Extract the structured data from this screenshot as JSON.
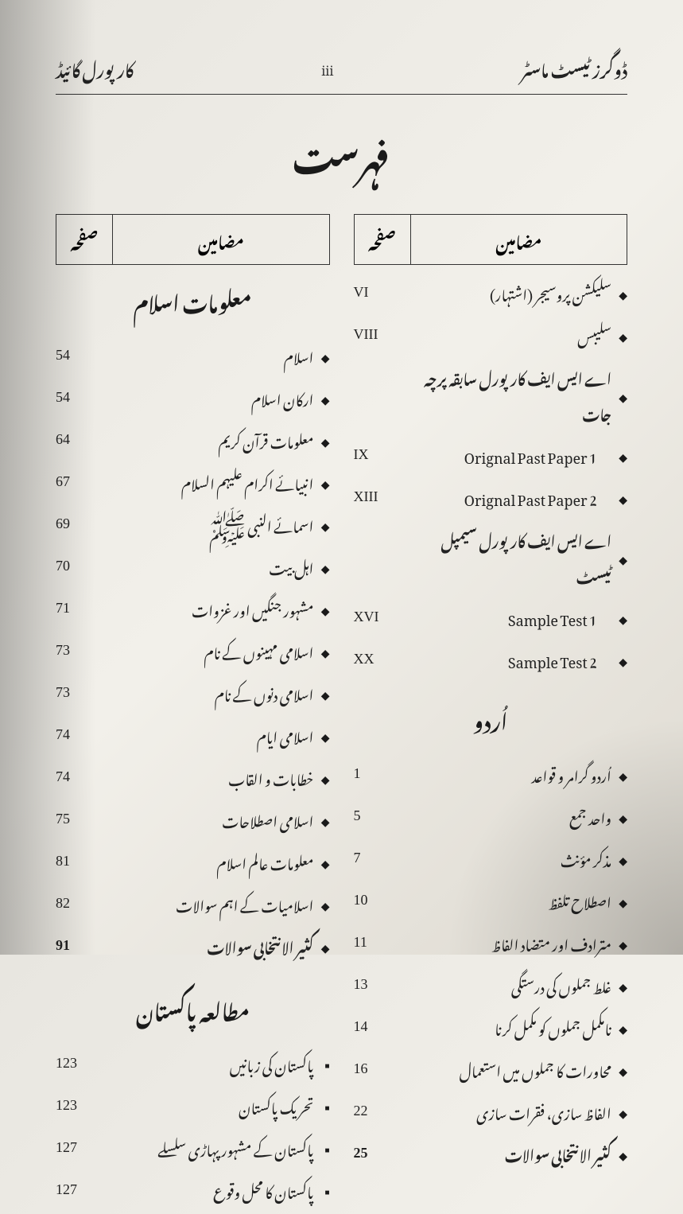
{
  "header": {
    "left": "کارپورل گائیڈ",
    "center": "iii",
    "right": "ڈوگرز ٹیسٹ ماسٹر"
  },
  "main_title": "فہرست",
  "column_headers": {
    "topic": "مضامین",
    "page": "صفحہ"
  },
  "right_column": {
    "items_top": [
      {
        "topic": "سلیکشن پروسیجر (اشتہار)",
        "page": "VI",
        "bullet": "diamond"
      },
      {
        "topic": "سلیبس",
        "page": "VIII",
        "bullet": "diamond"
      },
      {
        "topic": "اے ایس ایف کارپورل سابقہ پرچہ جات",
        "page": "",
        "bullet": "diamond",
        "bold": true
      },
      {
        "topic": "Orignal Past Paper 1",
        "page": "IX",
        "bullet": "diamond",
        "indent": true
      },
      {
        "topic": "Orignal Past Paper 2",
        "page": "XIII",
        "bullet": "diamond",
        "indent": true
      },
      {
        "topic": "اے ایس ایف کارپورل سیمپل ٹیسٹ",
        "page": "",
        "bullet": "diamond",
        "bold": true
      },
      {
        "topic": "Sample Test 1",
        "page": "XVI",
        "bullet": "diamond",
        "indent": true
      },
      {
        "topic": "Sample Test 2",
        "page": "XX",
        "bullet": "diamond",
        "indent": true
      }
    ],
    "section_urdu": "اُردو",
    "items_urdu": [
      {
        "topic": "اُردو گرامر و قواعد",
        "page": "1",
        "bullet": "diamond"
      },
      {
        "topic": "واحد جمع",
        "page": "5",
        "bullet": "diamond"
      },
      {
        "topic": "مذکر مؤنث",
        "page": "7",
        "bullet": "diamond"
      },
      {
        "topic": "اصطلاح تلفظ",
        "page": "10",
        "bullet": "diamond"
      },
      {
        "topic": "مترادف اور متضاد الفاظ",
        "page": "11",
        "bullet": "diamond"
      },
      {
        "topic": "غلط جملوں کی درستگی",
        "page": "13",
        "bullet": "diamond"
      },
      {
        "topic": "نامکمل جملوں کو مکمل کرنا",
        "page": "14",
        "bullet": "diamond"
      },
      {
        "topic": "محاورات کا جملوں میں استعمال",
        "page": "16",
        "bullet": "diamond"
      },
      {
        "topic": "الفاظ سازی، فقرات سازی",
        "page": "22",
        "bullet": "diamond"
      },
      {
        "topic": "کثیر الانتخابی سوالات",
        "page": "25",
        "bullet": "diamond",
        "bold": true
      }
    ]
  },
  "left_column": {
    "section_islam": "معلومات اسلام",
    "items_islam": [
      {
        "topic": "اسلام",
        "page": "54",
        "bullet": "diamond"
      },
      {
        "topic": "ارکان اسلام",
        "page": "54",
        "bullet": "diamond"
      },
      {
        "topic": "معلومات قرآن کریم",
        "page": "64",
        "bullet": "diamond"
      },
      {
        "topic": "انبیائے اکرام علیہم السلام",
        "page": "67",
        "bullet": "diamond"
      },
      {
        "topic": "اسمائے النبی ﷺ",
        "page": "69",
        "bullet": "diamond"
      },
      {
        "topic": "اہل بیت",
        "page": "70",
        "bullet": "diamond"
      },
      {
        "topic": "مشہور جنگیں اور غزوات",
        "page": "71",
        "bullet": "diamond"
      },
      {
        "topic": "اسلامی مہینوں کے نام",
        "page": "73",
        "bullet": "diamond"
      },
      {
        "topic": "اسلامی دنوں کے نام",
        "page": "73",
        "bullet": "diamond"
      },
      {
        "topic": "اسلامی ایام",
        "page": "74",
        "bullet": "diamond"
      },
      {
        "topic": "خطابات و القاب",
        "page": "74",
        "bullet": "diamond"
      },
      {
        "topic": "اسلامی اصطلاحات",
        "page": "75",
        "bullet": "diamond"
      },
      {
        "topic": "معلومات عالم اسلام",
        "page": "81",
        "bullet": "diamond"
      },
      {
        "topic": "اسلامیات کے اہم سوالات",
        "page": "82",
        "bullet": "diamond"
      },
      {
        "topic": "کثیر الانتخابی سوالات",
        "page": "91",
        "bullet": "diamond",
        "bold": true
      }
    ],
    "section_pakistan": "مطالعہ پاکستان",
    "items_pakistan": [
      {
        "topic": "پاکستان کی زبانیں",
        "page": "123",
        "bullet": "square"
      },
      {
        "topic": "تحریک پاکستان",
        "page": "123",
        "bullet": "square"
      },
      {
        "topic": "پاکستان کے مشہور پہاڑی سلسلے",
        "page": "127",
        "bullet": "square"
      },
      {
        "topic": "پاکستان کا محل وقوع",
        "page": "127",
        "bullet": "square"
      }
    ]
  }
}
